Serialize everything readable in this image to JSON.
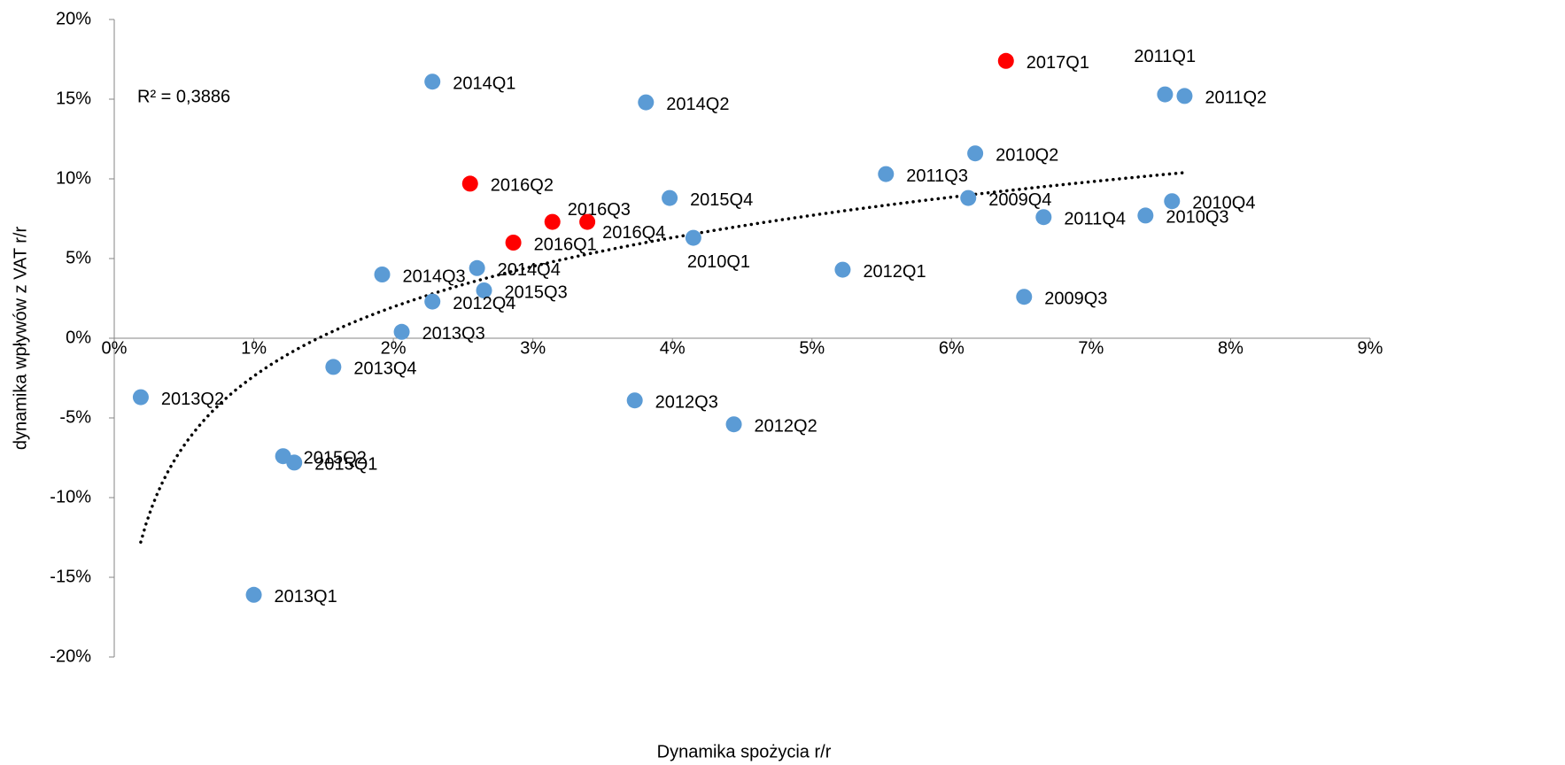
{
  "chart_data": {
    "type": "scatter",
    "x_label": "Dynamika spożycia  r/r",
    "y_label": "dynamika wpływów z VAT r/r",
    "point_labels": [
      "2017Q1",
      "2011Q1",
      "2011Q2",
      "2014Q1",
      "2014Q2",
      "2010Q2",
      "2011Q3",
      "2016Q2",
      "2015Q4",
      "2009Q4",
      "2010Q4",
      "2010Q3",
      "2011Q4",
      "2016Q3",
      "2016Q4",
      "2010Q1",
      "2016Q1",
      "2014Q4",
      "2012Q1",
      "2014Q3",
      "2015Q3",
      "2009Q3",
      "2012Q4",
      "2013Q3",
      "2013Q4",
      "2013Q2",
      "2012Q3",
      "2012Q2",
      "2015Q2",
      "2015Q1",
      "2013Q1"
    ],
    "x": [
      6.39,
      7.53,
      7.67,
      2.28,
      3.81,
      6.17,
      5.53,
      2.55,
      3.98,
      6.12,
      7.58,
      7.39,
      6.66,
      3.14,
      3.39,
      4.15,
      2.86,
      2.6,
      5.22,
      1.92,
      2.65,
      6.52,
      2.28,
      2.06,
      1.57,
      0.19,
      3.73,
      4.44,
      1.21,
      1.29,
      1.0
    ],
    "values": [
      17.4,
      15.3,
      15.2,
      16.1,
      14.8,
      11.6,
      10.3,
      9.7,
      8.8,
      8.8,
      8.6,
      7.7,
      7.6,
      7.3,
      7.3,
      6.3,
      6.0,
      4.4,
      4.3,
      4.0,
      3.0,
      2.6,
      2.3,
      0.4,
      -1.8,
      -3.7,
      -3.9,
      -5.4,
      -7.4,
      -7.8,
      -16.1
    ],
    "colors": [
      "#ff0000",
      "#5b9bd5",
      "#5b9bd5",
      "#5b9bd5",
      "#5b9bd5",
      "#5b9bd5",
      "#5b9bd5",
      "#ff0000",
      "#5b9bd5",
      "#5b9bd5",
      "#5b9bd5",
      "#5b9bd5",
      "#5b9bd5",
      "#ff0000",
      "#ff0000",
      "#5b9bd5",
      "#ff0000",
      "#5b9bd5",
      "#5b9bd5",
      "#5b9bd5",
      "#5b9bd5",
      "#5b9bd5",
      "#5b9bd5",
      "#5b9bd5",
      "#5b9bd5",
      "#5b9bd5",
      "#5b9bd5",
      "#5b9bd5",
      "#5b9bd5",
      "#5b9bd5",
      "#5b9bd5"
    ],
    "trendline": {
      "type": "log",
      "a": 6.27,
      "b": -2.38,
      "xrange": [
        0.19,
        7.67
      ],
      "label": "R² = 0,3886"
    },
    "xlim": [
      0,
      9
    ],
    "xticks": [
      {
        "value": 0,
        "label": "0%"
      },
      {
        "value": 1,
        "label": "1%"
      },
      {
        "value": 2,
        "label": "2%"
      },
      {
        "value": 3,
        "label": "3%"
      },
      {
        "value": 4,
        "label": "4%"
      },
      {
        "value": 5,
        "label": "5%"
      },
      {
        "value": 6,
        "label": "6%"
      },
      {
        "value": 7,
        "label": "7%"
      },
      {
        "value": 8,
        "label": "8%"
      },
      {
        "value": 9,
        "label": "9%"
      }
    ],
    "ylim": [
      -20,
      20
    ],
    "yticks": [
      {
        "value": -20,
        "label": "-20%"
      },
      {
        "value": -15,
        "label": "-15%"
      },
      {
        "value": -10,
        "label": "-10%"
      },
      {
        "value": -5,
        "label": "-5%"
      },
      {
        "value": 0,
        "label": "0%"
      },
      {
        "value": 5,
        "label": "5%"
      },
      {
        "value": 10,
        "label": "10%"
      },
      {
        "value": 15,
        "label": "15%"
      },
      {
        "value": 20,
        "label": "20%"
      }
    ],
    "grid": false
  }
}
